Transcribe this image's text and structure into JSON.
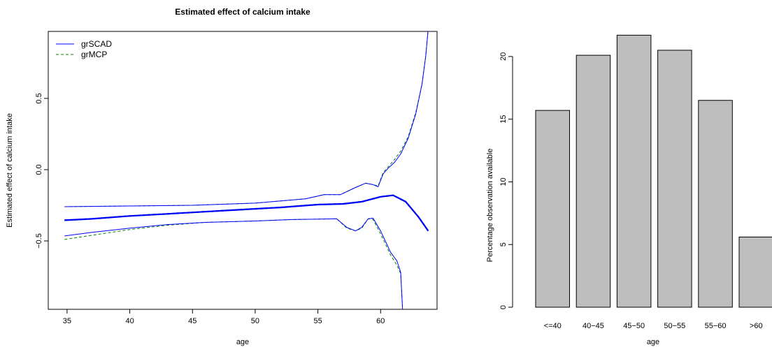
{
  "chart_data": [
    {
      "type": "line",
      "title": "Estimated effect of calcium intake",
      "xlabel": "age",
      "ylabel": "Estimated effect of calcium intake",
      "xlim": [
        33.5,
        64.5
      ],
      "ylim": [
        -0.98,
        0.97
      ],
      "x_ticks": [
        "35",
        "40",
        "45",
        "50",
        "55",
        "60"
      ],
      "y_ticks": [
        "−0.5",
        "0.0",
        "0.5"
      ],
      "y_tick_values": [
        -0.5,
        0.0,
        0.5
      ],
      "x_tick_values": [
        35,
        40,
        45,
        50,
        55,
        60
      ],
      "legend": "top-left",
      "series": [
        {
          "name": "grSCAD",
          "color": "#0000ff",
          "style": "solid",
          "estimate": [
            [
              34.8,
              -0.355
            ],
            [
              37,
              -0.345
            ],
            [
              40,
              -0.325
            ],
            [
              43,
              -0.31
            ],
            [
              46,
              -0.295
            ],
            [
              49,
              -0.28
            ],
            [
              52,
              -0.265
            ],
            [
              55,
              -0.245
            ],
            [
              57,
              -0.24
            ],
            [
              58.5,
              -0.225
            ],
            [
              60,
              -0.19
            ],
            [
              61,
              -0.18
            ],
            [
              62,
              -0.225
            ],
            [
              63,
              -0.33
            ],
            [
              63.8,
              -0.43
            ]
          ],
          "upper": [
            [
              34.8,
              -0.26
            ],
            [
              40,
              -0.255
            ],
            [
              45,
              -0.25
            ],
            [
              50,
              -0.235
            ],
            [
              54,
              -0.205
            ],
            [
              55.5,
              -0.175
            ],
            [
              56.8,
              -0.175
            ],
            [
              58,
              -0.125
            ],
            [
              58.8,
              -0.095
            ],
            [
              59.4,
              -0.105
            ],
            [
              59.8,
              -0.12
            ],
            [
              60.2,
              -0.03
            ],
            [
              60.6,
              0.01
            ],
            [
              61.1,
              0.05
            ],
            [
              61.6,
              0.11
            ],
            [
              62.2,
              0.22
            ],
            [
              62.8,
              0.39
            ],
            [
              63.3,
              0.6
            ],
            [
              63.6,
              0.8
            ],
            [
              63.8,
              0.99
            ]
          ],
          "lower": [
            [
              34.8,
              -0.465
            ],
            [
              37,
              -0.44
            ],
            [
              40,
              -0.41
            ],
            [
              43,
              -0.385
            ],
            [
              46,
              -0.37
            ],
            [
              50,
              -0.36
            ],
            [
              53,
              -0.35
            ],
            [
              56.5,
              -0.345
            ],
            [
              57.3,
              -0.405
            ],
            [
              58,
              -0.43
            ],
            [
              58.5,
              -0.405
            ],
            [
              59,
              -0.345
            ],
            [
              59.4,
              -0.34
            ],
            [
              60,
              -0.43
            ],
            [
              60.8,
              -0.58
            ],
            [
              61.3,
              -0.64
            ],
            [
              61.6,
              -0.72
            ],
            [
              61.75,
              -0.98
            ]
          ]
        },
        {
          "name": "grMCP",
          "color": "#008000",
          "style": "dashed",
          "estimate": [
            [
              34.8,
              -0.355
            ],
            [
              37,
              -0.345
            ],
            [
              40,
              -0.325
            ],
            [
              43,
              -0.31
            ],
            [
              46,
              -0.295
            ],
            [
              49,
              -0.28
            ],
            [
              52,
              -0.265
            ],
            [
              55,
              -0.245
            ],
            [
              57,
              -0.24
            ],
            [
              58.5,
              -0.225
            ],
            [
              60,
              -0.19
            ],
            [
              61,
              -0.18
            ],
            [
              62,
              -0.225
            ],
            [
              63,
              -0.33
            ],
            [
              63.8,
              -0.43
            ]
          ],
          "upper": [
            [
              34.8,
              -0.26
            ],
            [
              40,
              -0.255
            ],
            [
              45,
              -0.25
            ],
            [
              50,
              -0.235
            ],
            [
              54,
              -0.205
            ],
            [
              55.5,
              -0.175
            ],
            [
              56.8,
              -0.175
            ],
            [
              58,
              -0.125
            ],
            [
              58.8,
              -0.095
            ],
            [
              59.4,
              -0.105
            ],
            [
              59.8,
              -0.115
            ],
            [
              60.2,
              -0.02
            ],
            [
              60.6,
              0.02
            ],
            [
              61.1,
              0.07
            ],
            [
              61.6,
              0.13
            ],
            [
              62.2,
              0.23
            ],
            [
              62.8,
              0.4
            ],
            [
              63.3,
              0.6
            ],
            [
              63.6,
              0.8
            ],
            [
              63.8,
              0.99
            ]
          ],
          "lower": [
            [
              34.8,
              -0.49
            ],
            [
              37,
              -0.46
            ],
            [
              40,
              -0.42
            ],
            [
              43,
              -0.39
            ],
            [
              46,
              -0.37
            ],
            [
              50,
              -0.36
            ],
            [
              53,
              -0.35
            ],
            [
              56.5,
              -0.345
            ],
            [
              57.3,
              -0.41
            ],
            [
              58,
              -0.43
            ],
            [
              58.5,
              -0.41
            ],
            [
              59,
              -0.345
            ],
            [
              59.4,
              -0.35
            ],
            [
              60,
              -0.45
            ],
            [
              60.8,
              -0.6
            ],
            [
              61.3,
              -0.67
            ],
            [
              61.6,
              -0.73
            ],
            [
              61.75,
              -0.98
            ]
          ]
        }
      ]
    },
    {
      "type": "bar",
      "title": "",
      "xlabel": "age",
      "ylabel": "Percentage observation available",
      "categories": [
        "<=40",
        "40−45",
        "45−50",
        "50−55",
        "55−60",
        ">60"
      ],
      "values": [
        15.7,
        20.1,
        21.7,
        20.5,
        16.5,
        5.6
      ],
      "ylim": [
        0,
        22
      ],
      "y_ticks": [
        "0",
        "5",
        "10",
        "15",
        "20"
      ],
      "y_tick_values": [
        0,
        5,
        10,
        15,
        20
      ],
      "bar_color": "#bebebe"
    }
  ]
}
